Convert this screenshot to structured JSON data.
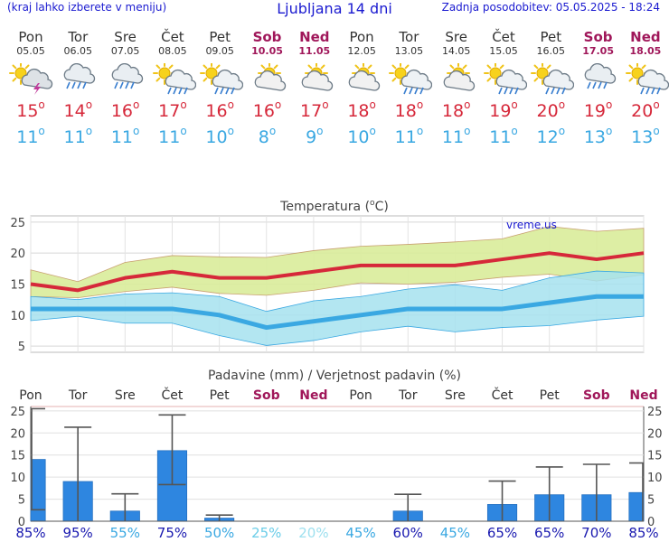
{
  "header": {
    "hint": "(kraj lahko izberete v meniju)",
    "title": "Ljubljana 14 dni",
    "updated": "Zadnja posodobitev: 05.05.2025 - 18:24"
  },
  "days": [
    {
      "name": "Pon",
      "date": "05.05",
      "weekend": false,
      "icon": "sun-cloud-thunder-icon",
      "max": "15",
      "min": "11"
    },
    {
      "name": "Tor",
      "date": "06.05",
      "weekend": false,
      "icon": "cloud-rain-icon",
      "max": "14",
      "min": "11"
    },
    {
      "name": "Sre",
      "date": "07.05",
      "weekend": false,
      "icon": "cloud-rain-icon",
      "max": "16",
      "min": "11"
    },
    {
      "name": "Čet",
      "date": "08.05",
      "weekend": false,
      "icon": "sun-cloud-rain-icon",
      "max": "17",
      "min": "11"
    },
    {
      "name": "Pet",
      "date": "09.05",
      "weekend": false,
      "icon": "sun-cloud-rain-icon",
      "max": "16",
      "min": "10"
    },
    {
      "name": "Sob",
      "date": "10.05",
      "weekend": true,
      "icon": "partly-cloudy-icon",
      "max": "16",
      "min": "8"
    },
    {
      "name": "Ned",
      "date": "11.05",
      "weekend": true,
      "icon": "partly-cloudy-icon",
      "max": "17",
      "min": "9"
    },
    {
      "name": "Pon",
      "date": "12.05",
      "weekend": false,
      "icon": "partly-cloudy-icon",
      "max": "18",
      "min": "10"
    },
    {
      "name": "Tor",
      "date": "13.05",
      "weekend": false,
      "icon": "sun-cloud-rain-icon",
      "max": "18",
      "min": "11"
    },
    {
      "name": "Sre",
      "date": "14.05",
      "weekend": false,
      "icon": "partly-cloudy-icon",
      "max": "18",
      "min": "11"
    },
    {
      "name": "Čet",
      "date": "15.05",
      "weekend": false,
      "icon": "sun-cloud-rain-icon",
      "max": "19",
      "min": "11"
    },
    {
      "name": "Pet",
      "date": "16.05",
      "weekend": false,
      "icon": "sun-cloud-rain-icon",
      "max": "20",
      "min": "12"
    },
    {
      "name": "Sob",
      "date": "17.05",
      "weekend": true,
      "icon": "cloud-rain-icon",
      "max": "19",
      "min": "13"
    },
    {
      "name": "Ned",
      "date": "18.05",
      "weekend": true,
      "icon": "sun-cloud-rain-icon",
      "max": "20",
      "min": "13"
    }
  ],
  "colors": {
    "max_line": "#d6283a",
    "min_line": "#3aa8e2",
    "max_band": "#d9ec9a",
    "min_band": "#a6e2ef",
    "overlap_band": "#8ecf9a",
    "bar": "#2e86e0",
    "weekend_text": "#a0175a",
    "header_text": "#1a1ad0"
  },
  "chart_data": [
    {
      "type": "line",
      "title": "Temperatura (°C)",
      "title_html": {
        "pre": "Temperatura (",
        "deg": "o",
        "post": "C)"
      },
      "watermark": "vreme.us",
      "x": [
        "05.05",
        "06.05",
        "07.05",
        "08.05",
        "09.05",
        "10.05",
        "11.05",
        "12.05",
        "13.05",
        "14.05",
        "15.05",
        "16.05",
        "17.05",
        "18.05"
      ],
      "ylim": [
        4,
        26
      ],
      "yticks": [
        5,
        10,
        15,
        20,
        25
      ],
      "grid": true,
      "series": [
        {
          "name": "max",
          "values": [
            15,
            14,
            16,
            17,
            16,
            16,
            17,
            18,
            18,
            18,
            19,
            20,
            19,
            20
          ]
        },
        {
          "name": "min",
          "values": [
            11,
            11,
            11,
            11,
            10,
            8,
            9,
            10,
            11,
            11,
            11,
            12,
            13,
            13
          ]
        }
      ],
      "bands": [
        {
          "of": "max",
          "lower": [
            13,
            12.8,
            13.8,
            14.5,
            13.5,
            13.2,
            14,
            15.2,
            15,
            15.3,
            16.1,
            16.6,
            15.5,
            16.5
          ],
          "upper": [
            17.3,
            15.4,
            18.5,
            19.6,
            19.4,
            19.3,
            20.4,
            21.1,
            21.4,
            21.8,
            22.3,
            24.3,
            23.5,
            24
          ]
        },
        {
          "of": "min",
          "lower": [
            9.1,
            9.8,
            8.7,
            8.7,
            6.7,
            5.1,
            5.9,
            7.3,
            8.2,
            7.3,
            8,
            8.3,
            9.2,
            9.8
          ],
          "upper": [
            13,
            12.5,
            13.4,
            13.6,
            13,
            10.6,
            12.3,
            13,
            14.2,
            14.9,
            14,
            16,
            17.1,
            16.8
          ]
        }
      ]
    },
    {
      "type": "bar",
      "title": "Padavine (mm) / Verjetnost padavin (%)",
      "categories": [
        "Pon",
        "Tor",
        "Sre",
        "Čet",
        "Pet",
        "Sob",
        "Ned",
        "Pon",
        "Tor",
        "Sre",
        "Čet",
        "Pet",
        "Sob",
        "Ned"
      ],
      "weekend": [
        false,
        false,
        false,
        false,
        false,
        true,
        true,
        false,
        false,
        false,
        false,
        false,
        true,
        true
      ],
      "values": [
        14,
        9,
        2.3,
        16,
        0.7,
        0,
        0,
        0,
        2.3,
        0,
        3.8,
        6,
        6,
        6.5
      ],
      "error_high": [
        25.5,
        21.3,
        6.2,
        24.1,
        1.4,
        0,
        0,
        0,
        6.1,
        0,
        9.1,
        12.3,
        12.9,
        13.2
      ],
      "error_low": [
        2.6,
        null,
        null,
        8.3,
        null,
        null,
        null,
        null,
        null,
        null,
        null,
        null,
        null,
        null
      ],
      "probability": [
        "85%",
        "95%",
        "55%",
        "75%",
        "50%",
        "25%",
        "20%",
        "45%",
        "60%",
        "45%",
        "65%",
        "65%",
        "70%",
        "85%"
      ],
      "probability_colors": [
        "#1a1ab0",
        "#1a1ab0",
        "#3aa8e2",
        "#1a1ab0",
        "#3aa8e2",
        "#6bcde8",
        "#9ee0ef",
        "#3aa8e2",
        "#1a1ab0",
        "#3aa8e2",
        "#1a1ab0",
        "#1a1ab0",
        "#1a1ab0",
        "#1a1ab0"
      ],
      "ylim": [
        0,
        26
      ],
      "yticks": [
        0,
        5,
        10,
        15,
        20,
        25
      ]
    }
  ]
}
